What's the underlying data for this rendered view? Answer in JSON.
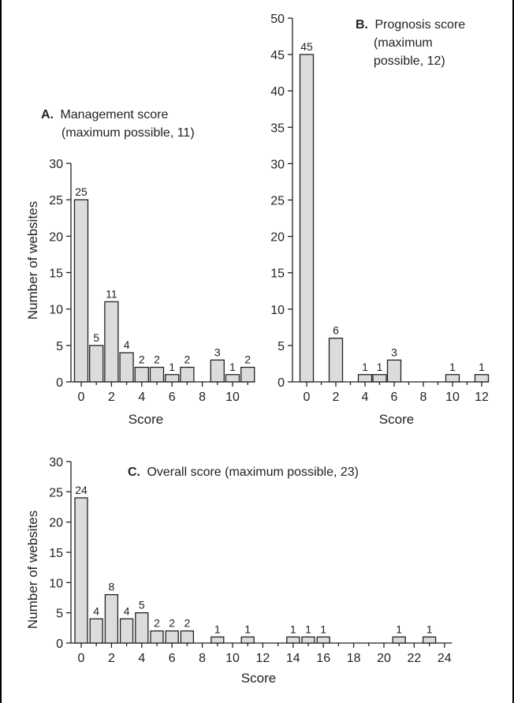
{
  "chart_data": [
    {
      "type": "bar",
      "id": "A",
      "title_letter": "A.",
      "title_line1": "Management score",
      "title_line2": "(maximum possible, 11)",
      "xlabel": "Score",
      "ylabel": "Number of websites",
      "xlim": [
        -0.5,
        11.5
      ],
      "ylim": [
        0,
        30
      ],
      "xticks": [
        0,
        2,
        4,
        6,
        8,
        10
      ],
      "yticks": [
        0,
        5,
        10,
        15,
        20,
        25,
        30
      ],
      "x": [
        0,
        1,
        2,
        3,
        4,
        5,
        6,
        7,
        8,
        9,
        10,
        11
      ],
      "values": [
        25,
        5,
        11,
        4,
        2,
        2,
        1,
        2,
        0,
        3,
        1,
        2
      ],
      "data_labels": [
        "25",
        "5",
        "11",
        "4",
        "2",
        "2",
        "1",
        "2",
        "",
        "3",
        "1",
        "2"
      ]
    },
    {
      "type": "bar",
      "id": "B",
      "title_letter": "B.",
      "title_line1": "Prognosis score",
      "title_line2": "(maximum",
      "title_line3": "possible, 12)",
      "xlabel": "Score",
      "ylabel": "",
      "xlim": [
        -0.5,
        12.5
      ],
      "ylim": [
        0,
        50
      ],
      "xticks": [
        0,
        2,
        4,
        6,
        8,
        10,
        12
      ],
      "yticks": [
        0,
        5,
        10,
        15,
        20,
        25,
        30,
        35,
        40,
        45,
        50
      ],
      "x": [
        0,
        2,
        4,
        5,
        6,
        10,
        12
      ],
      "values": [
        45,
        6,
        1,
        1,
        3,
        1,
        1
      ],
      "data_labels": [
        "45",
        "6",
        "1",
        "1",
        "3",
        "1",
        "1"
      ]
    },
    {
      "type": "bar",
      "id": "C",
      "title_letter": "C.",
      "title_line1": "Overall score (maximum possible, 23)",
      "xlabel": "Score",
      "ylabel": "Number of websites",
      "xlim": [
        -0.5,
        24.5
      ],
      "ylim": [
        0,
        30
      ],
      "xticks": [
        0,
        2,
        4,
        6,
        8,
        10,
        12,
        14,
        16,
        18,
        20,
        22,
        24
      ],
      "yticks": [
        0,
        5,
        10,
        15,
        20,
        25,
        30
      ],
      "x": [
        0,
        1,
        2,
        3,
        4,
        5,
        6,
        7,
        9,
        11,
        14,
        15,
        16,
        21,
        23
      ],
      "values": [
        24,
        4,
        8,
        4,
        5,
        2,
        2,
        2,
        1,
        1,
        1,
        1,
        1,
        1,
        1
      ],
      "data_labels": [
        "24",
        "4",
        "8",
        "4",
        "5",
        "2",
        "2",
        "2",
        "1",
        "1",
        "1",
        "1",
        "1",
        "1",
        "1"
      ]
    }
  ]
}
